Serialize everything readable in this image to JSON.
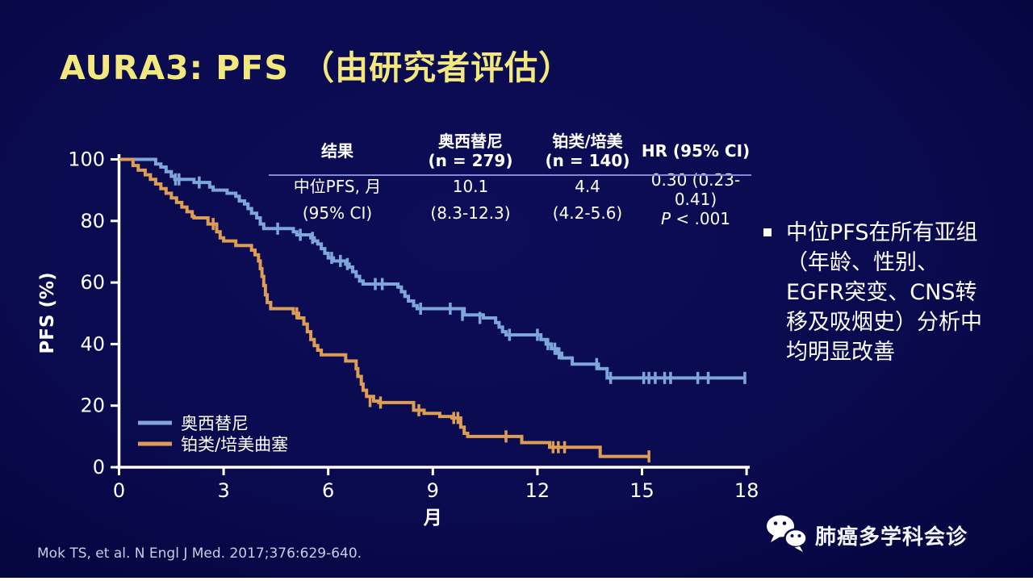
{
  "slide": {
    "title": "AURA3: PFS （由研究者评估）",
    "background_color": "#0a0a4f",
    "title_color": "#f2e87e"
  },
  "results_table": {
    "col1_header": "结果",
    "col2_header_line1": "奥西替尼",
    "col2_header_line2": "(n = 279)",
    "col3_header_line1": "铂类/培美",
    "col3_header_line2": "(n = 140)",
    "col4_header": "HR (95% CI)",
    "median_label": "中位PFS, 月",
    "median_osimertinib": "10.1",
    "median_chemo": "4.4",
    "hr_value": "0.30 (0.23-0.41)",
    "ci_label": "(95% CI)",
    "ci_osimertinib": "(8.3-12.3)",
    "ci_chemo": "(4.2-5.6)",
    "p_label": "P",
    "p_value": " < .001"
  },
  "chart_data": {
    "type": "line",
    "subtype": "kaplan-meier-step",
    "title": "",
    "xlabel": "月",
    "ylabel": "PFS (%)",
    "xlim": [
      0,
      18
    ],
    "ylim": [
      0,
      100
    ],
    "xticks": [
      0,
      3,
      6,
      9,
      12,
      15,
      18
    ],
    "yticks": [
      0,
      20,
      40,
      60,
      80,
      100
    ],
    "grid": false,
    "axis_color": "#ffffff",
    "legend_position": "lower-left",
    "series": [
      {
        "name": "奥西替尼",
        "color": "#7da6da",
        "steps": [
          [
            0,
            100
          ],
          [
            1.05,
            98.5
          ],
          [
            1.2,
            97.5
          ],
          [
            1.35,
            96
          ],
          [
            1.5,
            94.5
          ],
          [
            1.6,
            93.5
          ],
          [
            2.15,
            92.5
          ],
          [
            2.6,
            91
          ],
          [
            2.7,
            90
          ],
          [
            3.1,
            89
          ],
          [
            3.35,
            88
          ],
          [
            3.45,
            86.5
          ],
          [
            3.6,
            85.5
          ],
          [
            3.7,
            84
          ],
          [
            3.8,
            82.5
          ],
          [
            3.95,
            81
          ],
          [
            4.05,
            79
          ],
          [
            4.15,
            77.5
          ],
          [
            5.0,
            76.5
          ],
          [
            5.1,
            75.5
          ],
          [
            5.5,
            74.5
          ],
          [
            5.6,
            73.5
          ],
          [
            5.7,
            72.5
          ],
          [
            5.8,
            71
          ],
          [
            5.9,
            69.5
          ],
          [
            6.0,
            68
          ],
          [
            6.15,
            67
          ],
          [
            6.5,
            66
          ],
          [
            6.6,
            65
          ],
          [
            6.7,
            63.5
          ],
          [
            6.8,
            62
          ],
          [
            6.9,
            60.5
          ],
          [
            7.0,
            59.5
          ],
          [
            8.0,
            58.5
          ],
          [
            8.1,
            57
          ],
          [
            8.2,
            55.5
          ],
          [
            8.3,
            54
          ],
          [
            8.45,
            52.5
          ],
          [
            8.55,
            51.5
          ],
          [
            9.9,
            49.5
          ],
          [
            10.45,
            48.5
          ],
          [
            10.8,
            47
          ],
          [
            10.9,
            45.5
          ],
          [
            11.0,
            44
          ],
          [
            11.1,
            43
          ],
          [
            12.1,
            41.5
          ],
          [
            12.25,
            40
          ],
          [
            12.4,
            38.5
          ],
          [
            12.55,
            37
          ],
          [
            12.7,
            35.5
          ],
          [
            13.0,
            33.5
          ],
          [
            13.75,
            32
          ],
          [
            14.0,
            29
          ],
          [
            17.95,
            29
          ]
        ],
        "censors": [
          [
            1.62,
            93.5
          ],
          [
            1.72,
            93.5
          ],
          [
            2.3,
            92.5
          ],
          [
            4.55,
            77.5
          ],
          [
            5.2,
            75.5
          ],
          [
            5.55,
            74.5
          ],
          [
            6.1,
            68
          ],
          [
            6.35,
            67
          ],
          [
            6.55,
            66
          ],
          [
            7.35,
            59.5
          ],
          [
            7.55,
            59.5
          ],
          [
            8.65,
            51.5
          ],
          [
            9.5,
            51.5
          ],
          [
            9.85,
            49.5
          ],
          [
            10.35,
            48.5
          ],
          [
            11.2,
            43
          ],
          [
            12.0,
            43
          ],
          [
            12.3,
            40
          ],
          [
            12.5,
            38.5
          ],
          [
            12.62,
            37
          ],
          [
            13.7,
            33.5
          ],
          [
            14.1,
            29
          ],
          [
            15.05,
            29
          ],
          [
            15.2,
            29
          ],
          [
            15.38,
            29
          ],
          [
            15.65,
            29
          ],
          [
            15.82,
            29
          ],
          [
            16.6,
            29
          ],
          [
            16.9,
            29
          ],
          [
            17.95,
            29
          ]
        ]
      },
      {
        "name": "铂类/培美曲塞",
        "color": "#dd9d55",
        "steps": [
          [
            0,
            100
          ],
          [
            0.4,
            98
          ],
          [
            0.55,
            96.5
          ],
          [
            0.75,
            95
          ],
          [
            0.9,
            93.5
          ],
          [
            1.05,
            92
          ],
          [
            1.2,
            90.5
          ],
          [
            1.35,
            89
          ],
          [
            1.5,
            87.5
          ],
          [
            1.65,
            86
          ],
          [
            1.8,
            84.5
          ],
          [
            1.95,
            83
          ],
          [
            2.1,
            81.5
          ],
          [
            2.15,
            81
          ],
          [
            2.55,
            79
          ],
          [
            2.8,
            76.5
          ],
          [
            2.9,
            74.5
          ],
          [
            3.0,
            73.5
          ],
          [
            3.35,
            72
          ],
          [
            3.8,
            70.5
          ],
          [
            3.9,
            69
          ],
          [
            4.0,
            67
          ],
          [
            4.05,
            64.5
          ],
          [
            4.1,
            62
          ],
          [
            4.15,
            59
          ],
          [
            4.2,
            56
          ],
          [
            4.25,
            53.5
          ],
          [
            4.35,
            51.5
          ],
          [
            5.0,
            50
          ],
          [
            5.15,
            48.5
          ],
          [
            5.3,
            46.5
          ],
          [
            5.4,
            44
          ],
          [
            5.5,
            41.5
          ],
          [
            5.6,
            39.5
          ],
          [
            5.7,
            38
          ],
          [
            5.8,
            36.5
          ],
          [
            6.5,
            34.5
          ],
          [
            6.8,
            32
          ],
          [
            6.85,
            29.5
          ],
          [
            6.95,
            27
          ],
          [
            7.0,
            25
          ],
          [
            7.1,
            23
          ],
          [
            7.3,
            21.5
          ],
          [
            7.45,
            21
          ],
          [
            8.45,
            18.5
          ],
          [
            8.75,
            17.5
          ],
          [
            9.2,
            16.5
          ],
          [
            9.55,
            16
          ],
          [
            9.8,
            13
          ],
          [
            9.9,
            11
          ],
          [
            10.0,
            10
          ],
          [
            11.55,
            8
          ],
          [
            12.35,
            6.5
          ],
          [
            13.8,
            3.5
          ],
          [
            15.2,
            3.5
          ]
        ],
        "censors": [
          [
            2.7,
            79
          ],
          [
            5.1,
            50
          ],
          [
            7.2,
            21.5
          ],
          [
            7.5,
            21
          ],
          [
            8.6,
            18.5
          ],
          [
            9.6,
            16
          ],
          [
            9.72,
            16
          ],
          [
            11.1,
            10
          ],
          [
            12.45,
            6.5
          ],
          [
            12.6,
            6.5
          ],
          [
            12.78,
            6.5
          ],
          [
            15.2,
            3.5
          ]
        ]
      }
    ],
    "annotations": {
      "median_osimertinib_months": 10.1,
      "median_chemo_months": 4.4,
      "hazard_ratio": "0.30 (0.23-0.41)",
      "p": "< .001"
    }
  },
  "side_note": {
    "text": "中位PFS在所有亚组（年龄、性别、EGFR突变、CNS转移及吸烟史）分析中均明显改善"
  },
  "footer": {
    "citation": "Mok TS, et al. N Engl J Med. 2017;376:629-640.",
    "wechat_label": "肺癌多学科会诊"
  }
}
